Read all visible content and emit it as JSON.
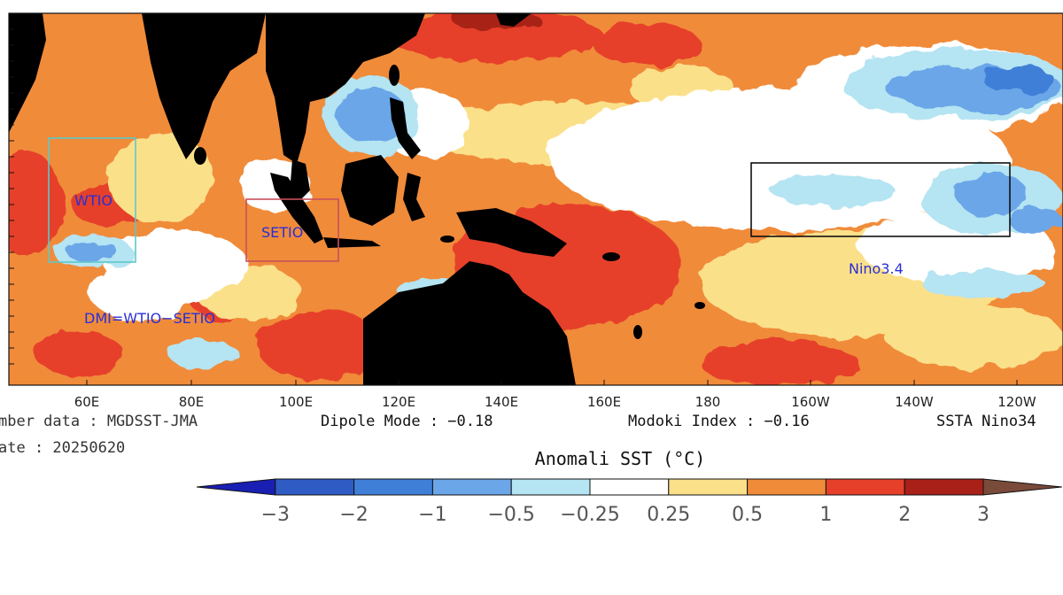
{
  "map": {
    "longitude_ticks": [
      "60E",
      "80E",
      "100E",
      "120E",
      "140E",
      "160E",
      "180",
      "160W",
      "140W",
      "120W"
    ],
    "regions": [
      {
        "key": "wtio",
        "label": "WTIO",
        "color": "#5ec8c8"
      },
      {
        "key": "setio",
        "label": "SETIO",
        "color": "#c8505a"
      },
      {
        "key": "nino34",
        "label": "Nino3.4",
        "color": "#111111"
      }
    ],
    "formula": "DMI=WTIO−SETIO"
  },
  "info": {
    "member_data": "mber data : MGDSST-JMA",
    "date": "ate : 20250620",
    "dipole_mode": "Dipole Mode : −0.18",
    "modoki_index": "Modoki Index : −0.16",
    "ssta_nino": "SSTA Nino34"
  },
  "colorbar": {
    "title": "Anomali SST (°C)",
    "colors": [
      "#1a1fb4",
      "#2e5cc4",
      "#3f7fd8",
      "#6aa6e8",
      "#b5e4f2",
      "#ffffff",
      "#fbe08a",
      "#f08b3a",
      "#e6402a",
      "#a82018",
      "#7a4a3a"
    ],
    "labels": [
      "−3",
      "−2",
      "−1",
      "−0.5",
      "−0.25",
      "0.25",
      "0.5",
      "1",
      "2",
      "3"
    ]
  }
}
